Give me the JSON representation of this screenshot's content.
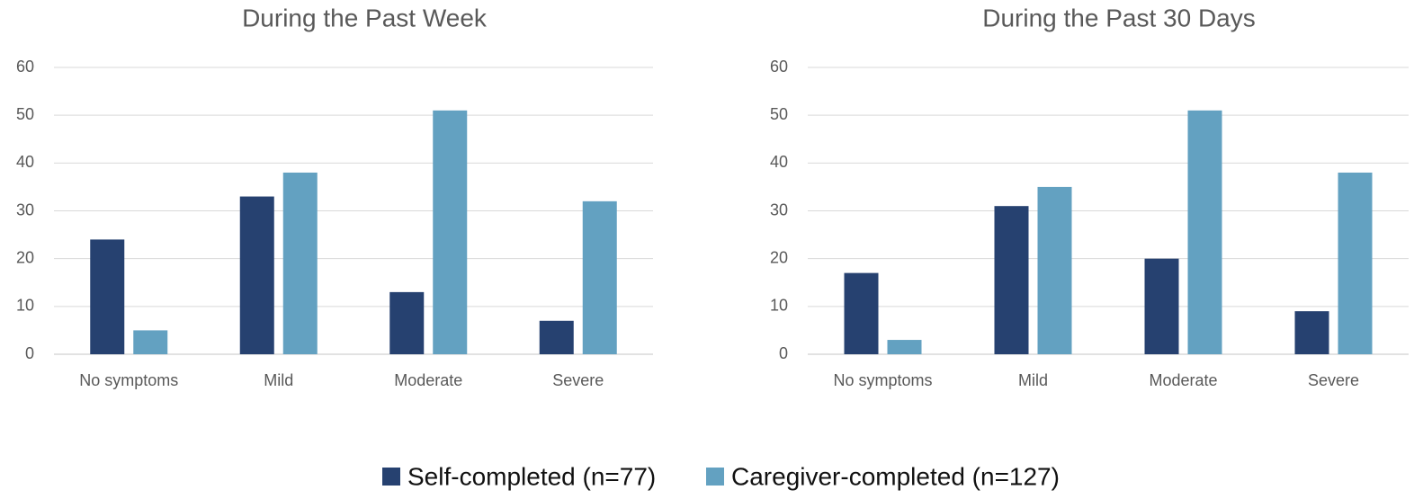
{
  "chart_data": [
    {
      "type": "bar",
      "title": "During the Past Week",
      "categories": [
        "No symptoms",
        "Mild",
        "Moderate",
        "Severe"
      ],
      "series": [
        {
          "name": "Self-completed (n=77)",
          "color": "#264170",
          "values": [
            24,
            33,
            13,
            7
          ]
        },
        {
          "name": "Caregiver-completed (n=127)",
          "color": "#63a1c1",
          "values": [
            5,
            38,
            51,
            32
          ]
        }
      ],
      "ylim": [
        0,
        60
      ],
      "yticks": [
        0,
        10,
        20,
        30,
        40,
        50,
        60
      ],
      "grid": true
    },
    {
      "type": "bar",
      "title": "During the Past 30 Days",
      "categories": [
        "No symptoms",
        "Mild",
        "Moderate",
        "Severe"
      ],
      "series": [
        {
          "color": "#264170",
          "values": [
            17,
            31,
            20,
            9
          ]
        },
        {
          "color": "#63a1c1",
          "values": [
            3,
            35,
            51,
            38
          ]
        }
      ],
      "ylim": [
        0,
        60
      ],
      "yticks": [
        0,
        10,
        20,
        30,
        40,
        50,
        60
      ],
      "grid": true
    }
  ]
}
